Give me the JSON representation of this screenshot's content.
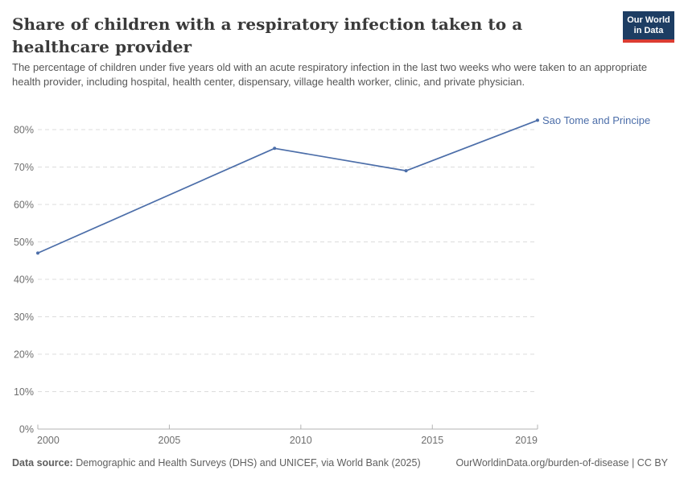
{
  "header": {
    "title": "Share of children with a respiratory infection taken to a healthcare provider",
    "subtitle": "The percentage of children under five years old with an acute respiratory infection in the last two weeks who were taken to an appropriate health provider, including hospital, health center, dispensary, village health worker, clinic, and private physician.",
    "logo": {
      "line1": "Our World",
      "line2": "in Data",
      "bg_color": "#1d3d63",
      "accent_color": "#dc3c32"
    }
  },
  "chart_data": {
    "type": "line",
    "title": "Share of children with a respiratory infection taken to a healthcare provider",
    "xlabel": "",
    "ylabel": "",
    "xlim": [
      2000,
      2019
    ],
    "ylim": [
      0,
      80
    ],
    "x_ticks": [
      2000,
      2005,
      2010,
      2015,
      2019
    ],
    "y_ticks": [
      0,
      10,
      20,
      30,
      40,
      50,
      60,
      70,
      80
    ],
    "y_tick_suffix": "%",
    "grid": "horizontal-dashed",
    "legend_position": "end-of-line label",
    "series": [
      {
        "name": "Sao Tome and Principe",
        "color": "#4c6ea9",
        "points": [
          {
            "x": 2000,
            "y": 47
          },
          {
            "x": 2009,
            "y": 75
          },
          {
            "x": 2014,
            "y": 69
          },
          {
            "x": 2019,
            "y": 82.5
          }
        ]
      }
    ],
    "style": {
      "gridline_color": "#dcdcdc",
      "axis_color": "#b3b3b3",
      "tick_label_color": "#6e6e6e"
    }
  },
  "footer": {
    "datasource_label": "Data source:",
    "datasource_text": " Demographic and Health Surveys (DHS) and UNICEF, via World Bank (2025)",
    "attribution": "OurWorldinData.org/burden-of-disease | CC BY"
  }
}
